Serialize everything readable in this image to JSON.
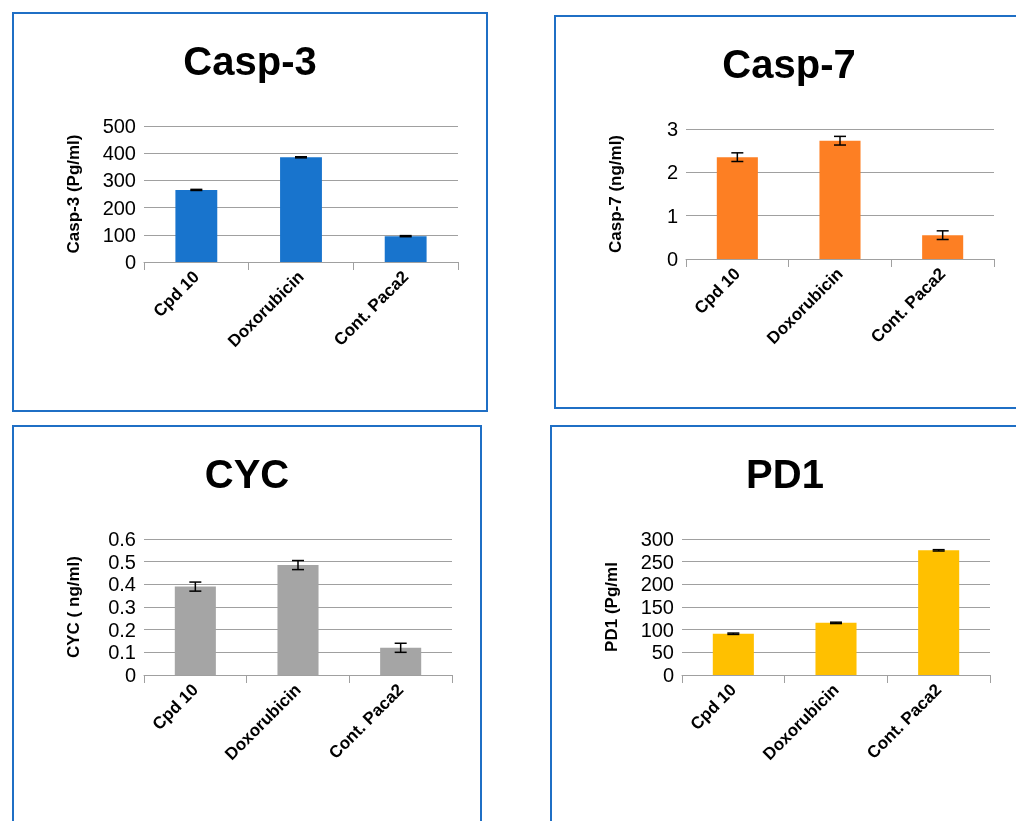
{
  "chart_data": [
    {
      "type": "bar",
      "title": "Casp-3",
      "ylabel": "Casp-3 (Pg/ml)",
      "categories": [
        "Cpd 10",
        "Doxorubicin",
        "Cont. Paca2"
      ],
      "series": [
        {
          "color": "#1874cd",
          "values": [
            265,
            385,
            95
          ],
          "errors": [
            2,
            2,
            2
          ]
        }
      ],
      "ylim": [
        0,
        500
      ],
      "yticks": [
        0,
        100,
        200,
        300,
        400,
        500
      ],
      "grid": "y"
    },
    {
      "type": "bar",
      "title": "Casp-7",
      "ylabel": "Casp-7 (ng/ml)",
      "categories": [
        "Cpd 10",
        "Doxorubicin",
        "Cont. Paca2"
      ],
      "series": [
        {
          "color": "#fd7f23",
          "values": [
            2.35,
            2.73,
            0.55
          ],
          "errors": [
            0.1,
            0.1,
            0.1
          ]
        }
      ],
      "ylim": [
        0,
        3
      ],
      "yticks": [
        0,
        1,
        2,
        3
      ],
      "grid": "y"
    },
    {
      "type": "bar",
      "title": "CYC",
      "ylabel": "CYC ( ng/ml)",
      "categories": [
        "Cpd 10",
        "Doxorubicin",
        "Cont. Paca2"
      ],
      "series": [
        {
          "color": "#a5a5a5",
          "values": [
            0.39,
            0.485,
            0.12
          ],
          "errors": [
            0.02,
            0.02,
            0.02
          ]
        }
      ],
      "ylim": [
        0,
        0.6
      ],
      "yticks": [
        0,
        0.1,
        0.2,
        0.3,
        0.4,
        0.5,
        0.6
      ],
      "grid": "y"
    },
    {
      "type": "bar",
      "title": "PD1",
      "ylabel": "PD1 (Pg/ml",
      "categories": [
        "Cpd 10",
        "Doxorubicin",
        "Cont. Paca2"
      ],
      "series": [
        {
          "color": "#ffc000",
          "values": [
            91,
            115,
            275
          ],
          "errors": [
            1.5,
            1.5,
            1.5
          ]
        }
      ],
      "ylim": [
        0,
        300
      ],
      "yticks": [
        0,
        50,
        100,
        150,
        200,
        250,
        300
      ],
      "grid": "y"
    }
  ]
}
